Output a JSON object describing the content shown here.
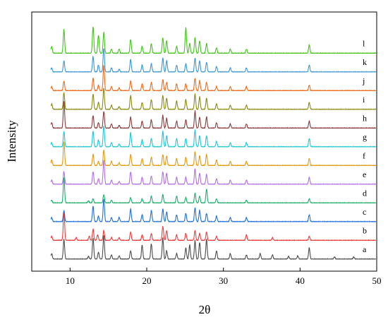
{
  "chart_data": {
    "type": "line",
    "xlabel": "2θ",
    "ylabel": "Intensity",
    "xlim": [
      5,
      50
    ],
    "x_ticks": [
      10,
      20,
      30,
      40,
      50
    ],
    "y_ticks_shown": false,
    "grid": false,
    "legend": "none",
    "series": [
      {
        "name": "a",
        "color": "#4d4d4d",
        "peaks": [
          [
            7.6,
            0.2
          ],
          [
            9.2,
            0.7
          ],
          [
            12.4,
            0.1
          ],
          [
            13.0,
            0.75
          ],
          [
            13.7,
            0.25
          ],
          [
            14.4,
            0.85
          ],
          [
            15.4,
            0.15
          ],
          [
            16.4,
            0.12
          ],
          [
            17.9,
            0.3
          ],
          [
            19.4,
            0.5
          ],
          [
            20.6,
            0.55
          ],
          [
            22.1,
            0.75
          ],
          [
            22.6,
            0.3
          ],
          [
            23.9,
            0.2
          ],
          [
            25.1,
            0.4
          ],
          [
            25.6,
            0.5
          ],
          [
            26.3,
            0.65
          ],
          [
            26.9,
            0.6
          ],
          [
            27.8,
            0.7
          ],
          [
            29.1,
            0.3
          ],
          [
            30.9,
            0.2
          ],
          [
            33.0,
            0.15
          ],
          [
            34.8,
            0.2
          ],
          [
            36.4,
            0.15
          ],
          [
            38.5,
            0.1
          ],
          [
            39.7,
            0.12
          ],
          [
            41.2,
            0.4
          ],
          [
            44.5,
            0.08
          ],
          [
            47.0,
            0.08
          ]
        ]
      },
      {
        "name": "b",
        "color": "#ee3b3b",
        "peaks": [
          [
            7.6,
            0.15
          ],
          [
            9.2,
            1.0
          ],
          [
            10.8,
            0.1
          ],
          [
            12.5,
            0.15
          ],
          [
            13.0,
            0.4
          ],
          [
            13.6,
            0.2
          ],
          [
            14.4,
            0.35
          ],
          [
            15.4,
            0.1
          ],
          [
            16.4,
            0.1
          ],
          [
            17.9,
            0.3
          ],
          [
            19.4,
            0.2
          ],
          [
            20.6,
            0.25
          ],
          [
            22.1,
            0.5
          ],
          [
            22.6,
            0.35
          ],
          [
            23.9,
            0.2
          ],
          [
            25.1,
            0.25
          ],
          [
            26.3,
            0.35
          ],
          [
            26.9,
            0.25
          ],
          [
            27.8,
            0.3
          ],
          [
            29.1,
            0.15
          ],
          [
            33.0,
            0.2
          ],
          [
            36.4,
            0.1
          ],
          [
            41.2,
            0.15
          ]
        ]
      },
      {
        "name": "c",
        "color": "#1f6fd6",
        "peaks": [
          [
            7.6,
            0.15
          ],
          [
            9.2,
            0.4
          ],
          [
            13.0,
            0.55
          ],
          [
            13.7,
            0.2
          ],
          [
            14.4,
            0.8
          ],
          [
            15.4,
            0.15
          ],
          [
            16.4,
            0.15
          ],
          [
            17.9,
            0.45
          ],
          [
            19.4,
            0.25
          ],
          [
            20.6,
            0.4
          ],
          [
            22.1,
            0.45
          ],
          [
            22.6,
            0.35
          ],
          [
            23.9,
            0.25
          ],
          [
            25.1,
            0.3
          ],
          [
            26.3,
            0.5
          ],
          [
            26.9,
            0.4
          ],
          [
            27.8,
            0.3
          ],
          [
            29.1,
            0.2
          ],
          [
            30.9,
            0.15
          ],
          [
            33.0,
            0.15
          ],
          [
            41.2,
            0.25
          ]
        ]
      },
      {
        "name": "d",
        "color": "#1fae6b",
        "peaks": [
          [
            7.6,
            0.1
          ],
          [
            9.2,
            0.9
          ],
          [
            12.4,
            0.08
          ],
          [
            13.0,
            0.15
          ],
          [
            14.4,
            0.3
          ],
          [
            15.4,
            0.1
          ],
          [
            17.9,
            0.2
          ],
          [
            19.4,
            0.15
          ],
          [
            20.6,
            0.25
          ],
          [
            22.1,
            0.3
          ],
          [
            23.9,
            0.25
          ],
          [
            25.1,
            0.2
          ],
          [
            26.3,
            0.35
          ],
          [
            26.9,
            0.25
          ],
          [
            27.8,
            0.5
          ],
          [
            29.1,
            0.15
          ],
          [
            33.0,
            0.1
          ],
          [
            41.2,
            0.15
          ]
        ]
      },
      {
        "name": "e",
        "color": "#b26ee8",
        "peaks": [
          [
            7.6,
            0.15
          ],
          [
            9.2,
            0.45
          ],
          [
            13.0,
            0.45
          ],
          [
            13.7,
            0.2
          ],
          [
            14.4,
            0.85
          ],
          [
            15.4,
            0.15
          ],
          [
            16.4,
            0.1
          ],
          [
            17.9,
            0.45
          ],
          [
            19.4,
            0.25
          ],
          [
            20.6,
            0.3
          ],
          [
            22.1,
            0.45
          ],
          [
            22.6,
            0.4
          ],
          [
            23.9,
            0.25
          ],
          [
            25.1,
            0.25
          ],
          [
            26.3,
            0.55
          ],
          [
            26.9,
            0.4
          ],
          [
            27.8,
            0.35
          ],
          [
            29.1,
            0.2
          ],
          [
            30.9,
            0.15
          ],
          [
            33.0,
            0.15
          ],
          [
            41.2,
            0.25
          ]
        ]
      },
      {
        "name": "f",
        "color": "#e59a10",
        "peaks": [
          [
            7.6,
            0.2
          ],
          [
            9.2,
            0.85
          ],
          [
            13.0,
            0.4
          ],
          [
            13.7,
            0.15
          ],
          [
            14.4,
            0.55
          ],
          [
            15.4,
            0.15
          ],
          [
            16.4,
            0.1
          ],
          [
            17.9,
            0.4
          ],
          [
            19.4,
            0.25
          ],
          [
            20.6,
            0.3
          ],
          [
            22.1,
            0.4
          ],
          [
            22.6,
            0.35
          ],
          [
            23.9,
            0.25
          ],
          [
            25.1,
            0.3
          ],
          [
            26.3,
            0.5
          ],
          [
            26.9,
            0.35
          ],
          [
            27.8,
            0.4
          ],
          [
            29.1,
            0.2
          ],
          [
            30.9,
            0.15
          ],
          [
            33.0,
            0.15
          ],
          [
            41.2,
            0.25
          ]
        ]
      },
      {
        "name": "g",
        "color": "#1cc6d6",
        "peaks": [
          [
            7.6,
            0.15
          ],
          [
            9.2,
            0.55
          ],
          [
            13.0,
            0.55
          ],
          [
            13.7,
            0.25
          ],
          [
            14.4,
            0.75
          ],
          [
            15.4,
            0.15
          ],
          [
            16.4,
            0.1
          ],
          [
            17.9,
            0.5
          ],
          [
            19.4,
            0.25
          ],
          [
            20.6,
            0.3
          ],
          [
            22.1,
            0.55
          ],
          [
            22.6,
            0.4
          ],
          [
            23.9,
            0.3
          ],
          [
            25.1,
            0.3
          ],
          [
            26.3,
            0.6
          ],
          [
            26.9,
            0.4
          ],
          [
            27.8,
            0.4
          ],
          [
            29.1,
            0.2
          ],
          [
            30.9,
            0.15
          ],
          [
            33.0,
            0.15
          ],
          [
            41.2,
            0.3
          ]
        ]
      },
      {
        "name": "h",
        "color": "#8c3a3a",
        "peaks": [
          [
            7.6,
            0.2
          ],
          [
            9.2,
            0.95
          ],
          [
            13.0,
            0.45
          ],
          [
            13.7,
            0.2
          ],
          [
            14.4,
            0.6
          ],
          [
            15.4,
            0.15
          ],
          [
            16.4,
            0.1
          ],
          [
            17.9,
            0.4
          ],
          [
            19.4,
            0.25
          ],
          [
            20.6,
            0.3
          ],
          [
            22.1,
            0.45
          ],
          [
            22.6,
            0.35
          ],
          [
            23.9,
            0.25
          ],
          [
            25.1,
            0.3
          ],
          [
            26.3,
            0.6
          ],
          [
            26.9,
            0.4
          ],
          [
            27.8,
            0.4
          ],
          [
            29.1,
            0.2
          ],
          [
            30.9,
            0.15
          ],
          [
            33.0,
            0.15
          ],
          [
            41.2,
            0.25
          ]
        ]
      },
      {
        "name": "i",
        "color": "#8a8a10",
        "peaks": [
          [
            7.6,
            0.2
          ],
          [
            9.2,
            0.6
          ],
          [
            13.0,
            0.55
          ],
          [
            13.7,
            0.25
          ],
          [
            14.4,
            0.75
          ],
          [
            15.4,
            0.15
          ],
          [
            16.4,
            0.1
          ],
          [
            17.9,
            0.5
          ],
          [
            19.4,
            0.25
          ],
          [
            20.6,
            0.35
          ],
          [
            22.1,
            0.5
          ],
          [
            22.6,
            0.4
          ],
          [
            23.9,
            0.3
          ],
          [
            25.1,
            0.35
          ],
          [
            26.3,
            0.55
          ],
          [
            26.9,
            0.45
          ],
          [
            27.8,
            0.4
          ],
          [
            29.1,
            0.2
          ],
          [
            30.9,
            0.15
          ],
          [
            33.0,
            0.15
          ],
          [
            41.2,
            0.25
          ]
        ]
      },
      {
        "name": "j",
        "color": "#f06a1a",
        "peaks": [
          [
            7.6,
            0.15
          ],
          [
            9.2,
            0.35
          ],
          [
            13.0,
            0.45
          ],
          [
            13.7,
            0.2
          ],
          [
            14.4,
            0.9
          ],
          [
            15.4,
            0.15
          ],
          [
            16.4,
            0.1
          ],
          [
            17.9,
            0.35
          ],
          [
            19.4,
            0.25
          ],
          [
            20.6,
            0.3
          ],
          [
            22.1,
            0.4
          ],
          [
            22.6,
            0.3
          ],
          [
            23.9,
            0.25
          ],
          [
            25.1,
            0.25
          ],
          [
            26.3,
            0.45
          ],
          [
            26.9,
            0.35
          ],
          [
            27.8,
            0.3
          ],
          [
            29.1,
            0.15
          ],
          [
            30.9,
            0.15
          ],
          [
            33.0,
            0.15
          ],
          [
            41.2,
            0.2
          ]
        ]
      },
      {
        "name": "k",
        "color": "#3a96d6",
        "peaks": [
          [
            7.6,
            0.15
          ],
          [
            9.2,
            0.4
          ],
          [
            13.0,
            0.55
          ],
          [
            13.7,
            0.25
          ],
          [
            14.4,
            0.85
          ],
          [
            15.4,
            0.15
          ],
          [
            16.4,
            0.1
          ],
          [
            17.9,
            0.45
          ],
          [
            19.4,
            0.25
          ],
          [
            20.6,
            0.3
          ],
          [
            22.1,
            0.5
          ],
          [
            22.6,
            0.4
          ],
          [
            23.9,
            0.25
          ],
          [
            25.1,
            0.3
          ],
          [
            26.3,
            0.5
          ],
          [
            26.9,
            0.4
          ],
          [
            27.8,
            0.35
          ],
          [
            29.1,
            0.2
          ],
          [
            30.9,
            0.15
          ],
          [
            33.0,
            0.15
          ],
          [
            41.2,
            0.25
          ]
        ]
      },
      {
        "name": "l",
        "color": "#44c41c",
        "peaks": [
          [
            7.6,
            0.25
          ],
          [
            9.2,
            0.85
          ],
          [
            13.0,
            0.95
          ],
          [
            13.7,
            0.65
          ],
          [
            14.4,
            0.75
          ],
          [
            15.4,
            0.15
          ],
          [
            16.4,
            0.15
          ],
          [
            17.9,
            0.5
          ],
          [
            19.4,
            0.25
          ],
          [
            20.6,
            0.35
          ],
          [
            22.1,
            0.55
          ],
          [
            22.6,
            0.45
          ],
          [
            23.9,
            0.25
          ],
          [
            25.1,
            0.9
          ],
          [
            25.6,
            0.35
          ],
          [
            26.3,
            0.55
          ],
          [
            26.9,
            0.45
          ],
          [
            27.8,
            0.35
          ],
          [
            29.1,
            0.2
          ],
          [
            30.9,
            0.15
          ],
          [
            33.0,
            0.15
          ],
          [
            41.2,
            0.3
          ]
        ]
      }
    ]
  }
}
